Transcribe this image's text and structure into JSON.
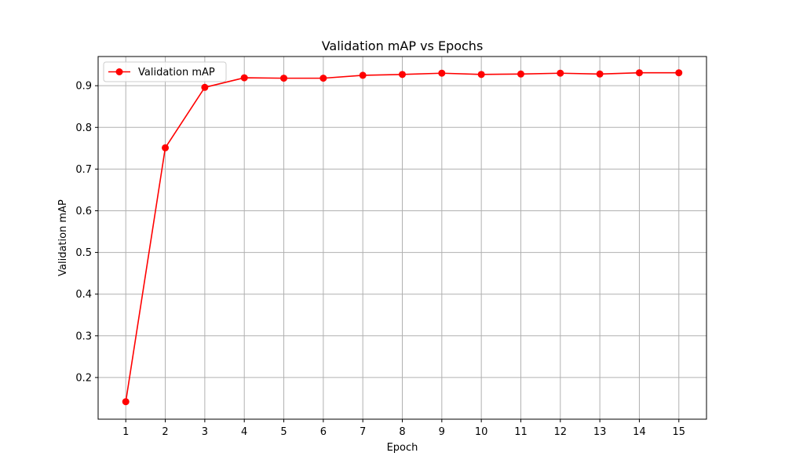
{
  "chart_data": {
    "type": "line",
    "title": "Validation mAP vs Epochs",
    "xlabel": "Epoch",
    "ylabel": "Validation mAP",
    "x": [
      1,
      2,
      3,
      4,
      5,
      6,
      7,
      8,
      9,
      10,
      11,
      12,
      13,
      14,
      15
    ],
    "xticks": [
      "1",
      "2",
      "3",
      "4",
      "5",
      "6",
      "7",
      "8",
      "9",
      "10",
      "11",
      "12",
      "13",
      "14",
      "15"
    ],
    "yticks": [
      "0.2",
      "0.3",
      "0.4",
      "0.5",
      "0.6",
      "0.7",
      "0.8",
      "0.9"
    ],
    "xlim": [
      0.3,
      15.7
    ],
    "ylim": [
      0.1,
      0.97
    ],
    "grid": true,
    "legend_position": "top-left",
    "series": [
      {
        "name": "Validation mAP",
        "color": "#ff0000",
        "marker": "circle",
        "values": [
          0.142,
          0.751,
          0.896,
          0.919,
          0.918,
          0.918,
          0.925,
          0.927,
          0.93,
          0.927,
          0.928,
          0.93,
          0.928,
          0.931,
          0.931
        ]
      }
    ]
  }
}
